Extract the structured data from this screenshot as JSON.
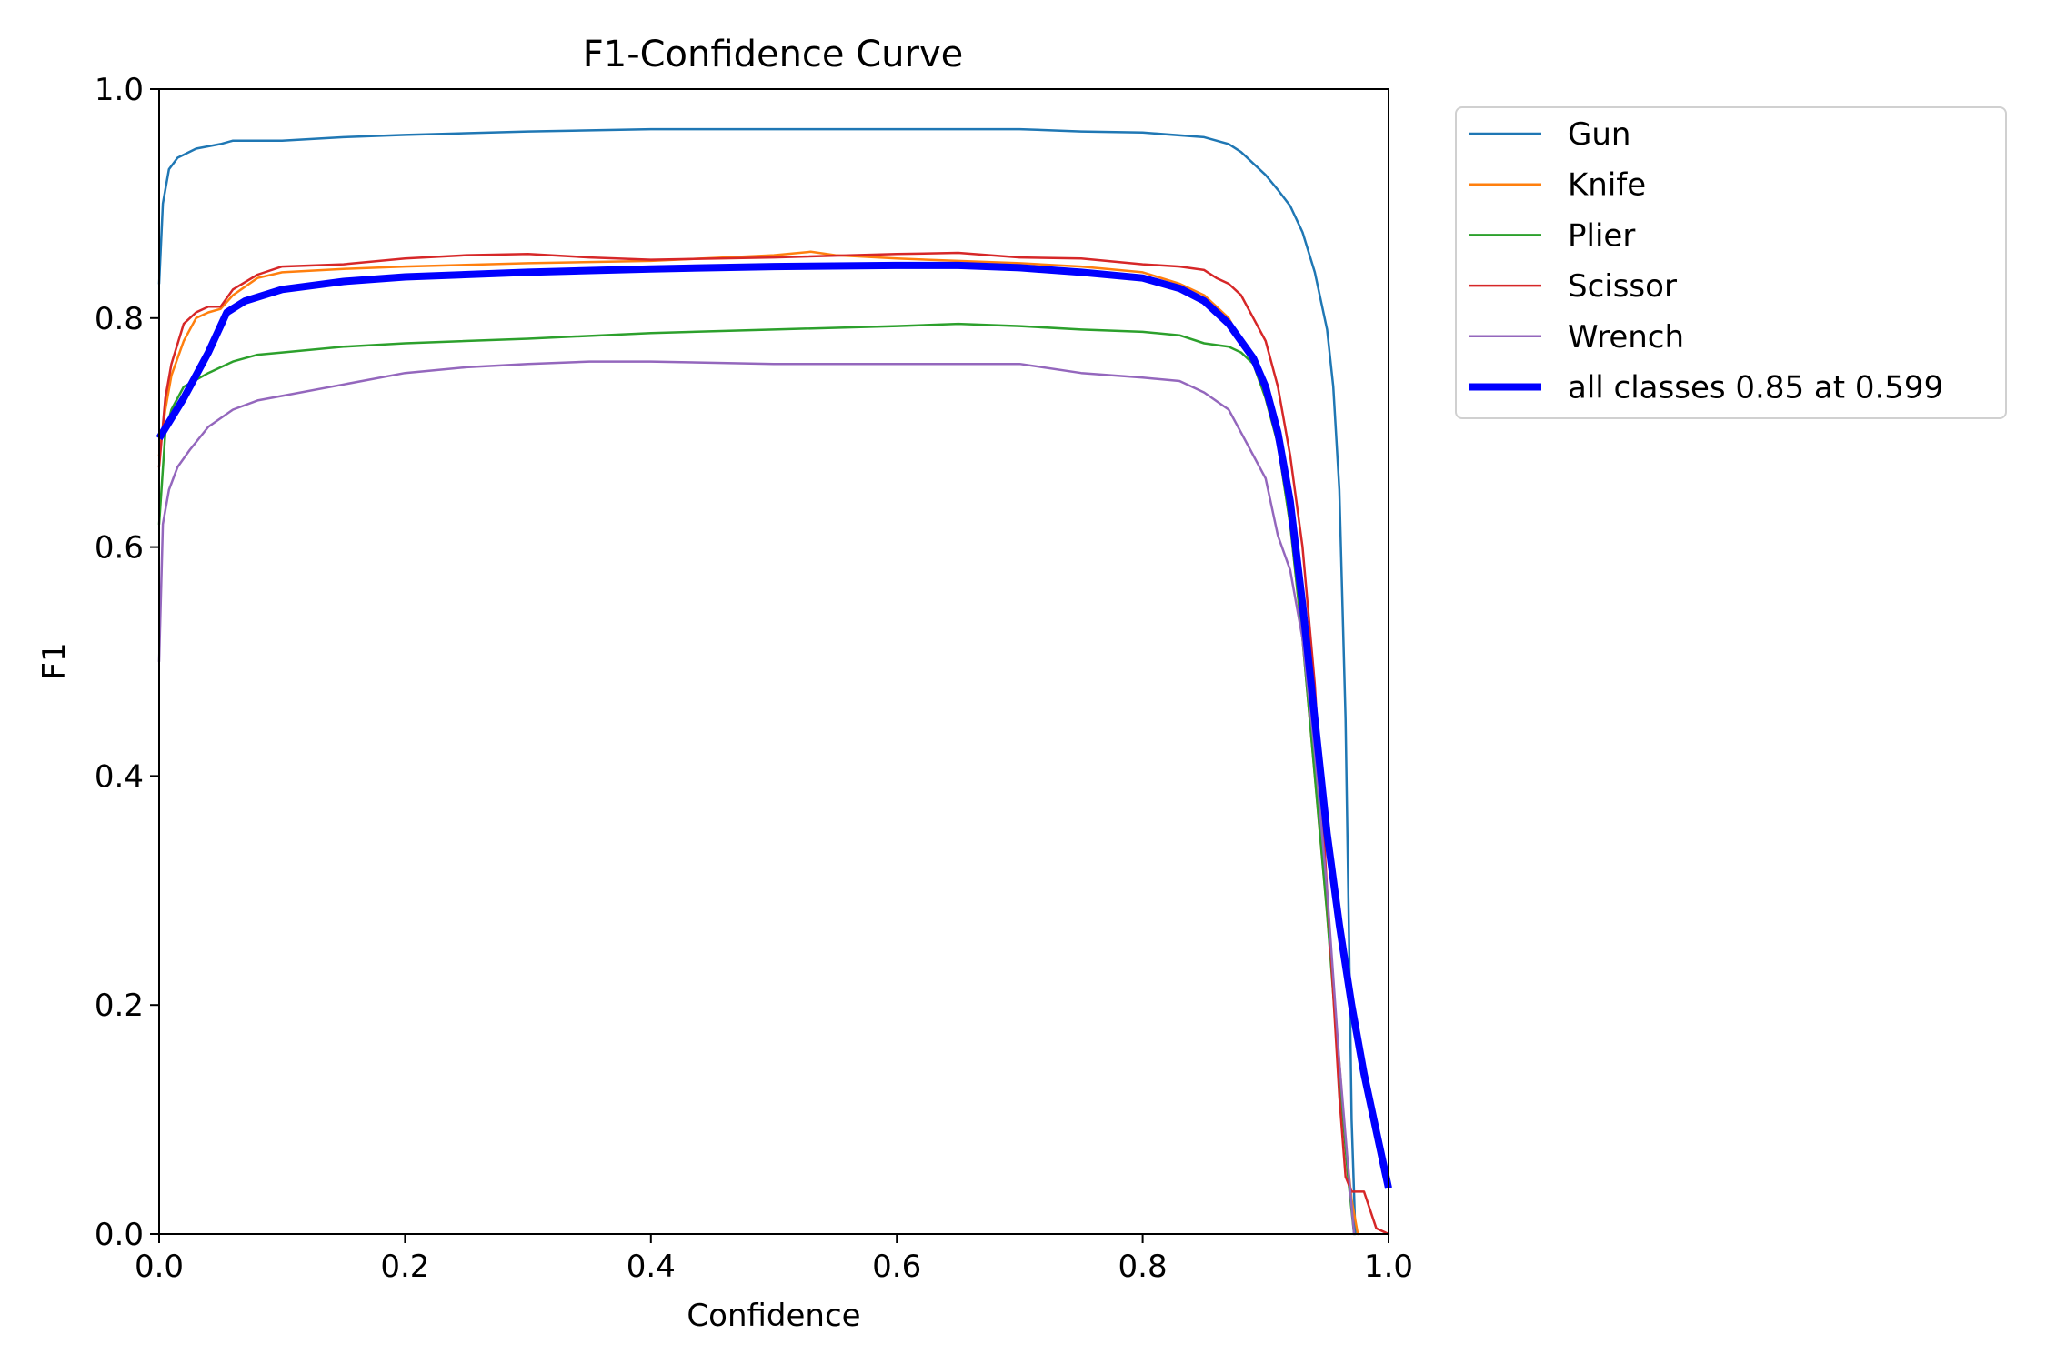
{
  "chart_data": {
    "type": "line",
    "title": "F1-Confidence Curve",
    "xlabel": "Confidence",
    "ylabel": "F1",
    "xlim": [
      0,
      1
    ],
    "ylim": [
      0,
      1
    ],
    "xticks": [
      "0.0",
      "0.2",
      "0.4",
      "0.6",
      "0.8",
      "1.0"
    ],
    "yticks": [
      "0.0",
      "0.2",
      "0.4",
      "0.6",
      "0.8",
      "1.0"
    ],
    "grid": false,
    "legend_position": "outside-top-right",
    "series": [
      {
        "name": "Gun",
        "color": "#1f77b4",
        "line_width": "thin",
        "points": [
          [
            0,
            0.83
          ],
          [
            0.003,
            0.9
          ],
          [
            0.008,
            0.93
          ],
          [
            0.015,
            0.94
          ],
          [
            0.03,
            0.948
          ],
          [
            0.05,
            0.952
          ],
          [
            0.06,
            0.955
          ],
          [
            0.1,
            0.955
          ],
          [
            0.15,
            0.958
          ],
          [
            0.2,
            0.96
          ],
          [
            0.3,
            0.963
          ],
          [
            0.4,
            0.965
          ],
          [
            0.5,
            0.965
          ],
          [
            0.6,
            0.965
          ],
          [
            0.7,
            0.965
          ],
          [
            0.75,
            0.963
          ],
          [
            0.8,
            0.962
          ],
          [
            0.85,
            0.958
          ],
          [
            0.87,
            0.952
          ],
          [
            0.88,
            0.945
          ],
          [
            0.89,
            0.935
          ],
          [
            0.9,
            0.925
          ],
          [
            0.91,
            0.912
          ],
          [
            0.92,
            0.898
          ],
          [
            0.93,
            0.875
          ],
          [
            0.94,
            0.84
          ],
          [
            0.95,
            0.79
          ],
          [
            0.955,
            0.74
          ],
          [
            0.96,
            0.65
          ],
          [
            0.965,
            0.45
          ],
          [
            0.968,
            0.25
          ],
          [
            0.97,
            0.1
          ],
          [
            0.973,
            0.0
          ]
        ]
      },
      {
        "name": "Knife",
        "color": "#ff7f0e",
        "line_width": "thin",
        "points": [
          [
            0,
            0.68
          ],
          [
            0.005,
            0.72
          ],
          [
            0.01,
            0.75
          ],
          [
            0.02,
            0.78
          ],
          [
            0.03,
            0.8
          ],
          [
            0.04,
            0.805
          ],
          [
            0.05,
            0.808
          ],
          [
            0.06,
            0.82
          ],
          [
            0.08,
            0.835
          ],
          [
            0.1,
            0.84
          ],
          [
            0.15,
            0.843
          ],
          [
            0.2,
            0.845
          ],
          [
            0.3,
            0.848
          ],
          [
            0.4,
            0.85
          ],
          [
            0.5,
            0.855
          ],
          [
            0.53,
            0.858
          ],
          [
            0.55,
            0.855
          ],
          [
            0.6,
            0.852
          ],
          [
            0.65,
            0.85
          ],
          [
            0.7,
            0.848
          ],
          [
            0.75,
            0.845
          ],
          [
            0.8,
            0.84
          ],
          [
            0.83,
            0.83
          ],
          [
            0.85,
            0.82
          ],
          [
            0.87,
            0.8
          ],
          [
            0.88,
            0.78
          ],
          [
            0.89,
            0.76
          ],
          [
            0.9,
            0.73
          ],
          [
            0.91,
            0.69
          ],
          [
            0.92,
            0.62
          ],
          [
            0.93,
            0.52
          ],
          [
            0.94,
            0.4
          ],
          [
            0.95,
            0.28
          ],
          [
            0.96,
            0.15
          ],
          [
            0.965,
            0.08
          ],
          [
            0.97,
            0.03
          ],
          [
            0.975,
            0.0
          ]
        ]
      },
      {
        "name": "Plier",
        "color": "#2ca02c",
        "line_width": "thin",
        "points": [
          [
            0,
            0.62
          ],
          [
            0.005,
            0.7
          ],
          [
            0.01,
            0.72
          ],
          [
            0.02,
            0.74
          ],
          [
            0.04,
            0.752
          ],
          [
            0.06,
            0.762
          ],
          [
            0.08,
            0.768
          ],
          [
            0.1,
            0.77
          ],
          [
            0.15,
            0.775
          ],
          [
            0.2,
            0.778
          ],
          [
            0.3,
            0.782
          ],
          [
            0.4,
            0.787
          ],
          [
            0.5,
            0.79
          ],
          [
            0.6,
            0.793
          ],
          [
            0.65,
            0.795
          ],
          [
            0.7,
            0.793
          ],
          [
            0.75,
            0.79
          ],
          [
            0.8,
            0.788
          ],
          [
            0.83,
            0.785
          ],
          [
            0.85,
            0.778
          ],
          [
            0.87,
            0.775
          ],
          [
            0.88,
            0.77
          ],
          [
            0.89,
            0.76
          ],
          [
            0.9,
            0.73
          ],
          [
            0.91,
            0.69
          ],
          [
            0.92,
            0.62
          ],
          [
            0.93,
            0.52
          ],
          [
            0.94,
            0.4
          ],
          [
            0.95,
            0.28
          ],
          [
            0.96,
            0.14
          ],
          [
            0.967,
            0.05
          ],
          [
            0.972,
            0.0
          ]
        ]
      },
      {
        "name": "Scissor",
        "color": "#d62728",
        "line_width": "thin",
        "points": [
          [
            0,
            0.67
          ],
          [
            0.005,
            0.73
          ],
          [
            0.01,
            0.76
          ],
          [
            0.02,
            0.795
          ],
          [
            0.03,
            0.805
          ],
          [
            0.04,
            0.81
          ],
          [
            0.05,
            0.81
          ],
          [
            0.06,
            0.825
          ],
          [
            0.08,
            0.838
          ],
          [
            0.1,
            0.845
          ],
          [
            0.15,
            0.847
          ],
          [
            0.2,
            0.852
          ],
          [
            0.25,
            0.855
          ],
          [
            0.3,
            0.856
          ],
          [
            0.35,
            0.853
          ],
          [
            0.4,
            0.851
          ],
          [
            0.5,
            0.853
          ],
          [
            0.6,
            0.856
          ],
          [
            0.65,
            0.857
          ],
          [
            0.7,
            0.853
          ],
          [
            0.75,
            0.852
          ],
          [
            0.8,
            0.847
          ],
          [
            0.83,
            0.845
          ],
          [
            0.85,
            0.842
          ],
          [
            0.86,
            0.835
          ],
          [
            0.87,
            0.83
          ],
          [
            0.88,
            0.82
          ],
          [
            0.89,
            0.8
          ],
          [
            0.9,
            0.78
          ],
          [
            0.91,
            0.74
          ],
          [
            0.92,
            0.68
          ],
          [
            0.93,
            0.6
          ],
          [
            0.94,
            0.48
          ],
          [
            0.95,
            0.3
          ],
          [
            0.96,
            0.12
          ],
          [
            0.965,
            0.05
          ],
          [
            0.97,
            0.037
          ],
          [
            0.98,
            0.037
          ],
          [
            0.99,
            0.005
          ],
          [
            1.0,
            0.0
          ]
        ]
      },
      {
        "name": "Wrench",
        "color": "#9467bd",
        "line_width": "thin",
        "points": [
          [
            0,
            0.5
          ],
          [
            0.003,
            0.62
          ],
          [
            0.008,
            0.65
          ],
          [
            0.015,
            0.67
          ],
          [
            0.025,
            0.685
          ],
          [
            0.04,
            0.705
          ],
          [
            0.06,
            0.72
          ],
          [
            0.08,
            0.728
          ],
          [
            0.1,
            0.732
          ],
          [
            0.15,
            0.742
          ],
          [
            0.2,
            0.752
          ],
          [
            0.25,
            0.757
          ],
          [
            0.3,
            0.76
          ],
          [
            0.35,
            0.762
          ],
          [
            0.4,
            0.762
          ],
          [
            0.5,
            0.76
          ],
          [
            0.6,
            0.76
          ],
          [
            0.7,
            0.76
          ],
          [
            0.75,
            0.752
          ],
          [
            0.8,
            0.748
          ],
          [
            0.83,
            0.745
          ],
          [
            0.84,
            0.74
          ],
          [
            0.85,
            0.735
          ],
          [
            0.87,
            0.72
          ],
          [
            0.88,
            0.7
          ],
          [
            0.89,
            0.68
          ],
          [
            0.9,
            0.66
          ],
          [
            0.91,
            0.61
          ],
          [
            0.92,
            0.58
          ],
          [
            0.93,
            0.52
          ],
          [
            0.94,
            0.42
          ],
          [
            0.95,
            0.3
          ],
          [
            0.96,
            0.15
          ],
          [
            0.967,
            0.06
          ],
          [
            0.972,
            0.0
          ]
        ]
      },
      {
        "name": "all classes 0.85 at 0.599",
        "color": "#0000ff",
        "line_width": "thick",
        "points": [
          [
            0,
            0.695
          ],
          [
            0.02,
            0.73
          ],
          [
            0.04,
            0.77
          ],
          [
            0.055,
            0.805
          ],
          [
            0.07,
            0.815
          ],
          [
            0.1,
            0.825
          ],
          [
            0.15,
            0.832
          ],
          [
            0.2,
            0.836
          ],
          [
            0.3,
            0.84
          ],
          [
            0.4,
            0.843
          ],
          [
            0.5,
            0.845
          ],
          [
            0.599,
            0.846
          ],
          [
            0.65,
            0.846
          ],
          [
            0.7,
            0.844
          ],
          [
            0.75,
            0.84
          ],
          [
            0.8,
            0.835
          ],
          [
            0.83,
            0.826
          ],
          [
            0.85,
            0.815
          ],
          [
            0.87,
            0.795
          ],
          [
            0.89,
            0.765
          ],
          [
            0.9,
            0.74
          ],
          [
            0.91,
            0.7
          ],
          [
            0.92,
            0.64
          ],
          [
            0.93,
            0.55
          ],
          [
            0.94,
            0.45
          ],
          [
            0.95,
            0.35
          ],
          [
            0.96,
            0.27
          ],
          [
            0.97,
            0.2
          ],
          [
            0.98,
            0.14
          ],
          [
            0.99,
            0.09
          ],
          [
            1.0,
            0.04
          ]
        ]
      }
    ]
  }
}
